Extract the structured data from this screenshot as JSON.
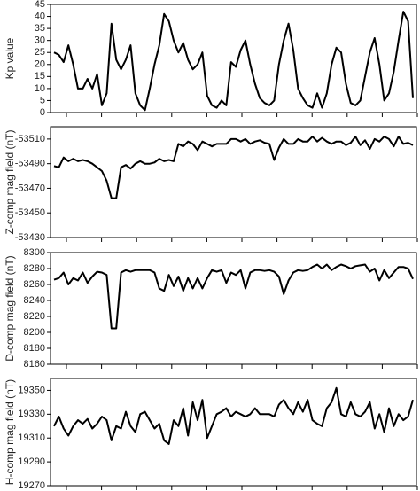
{
  "chart_data": [
    {
      "type": "line",
      "ylabel": "Kp value",
      "color": "#000000",
      "ylim": [
        0,
        45
      ],
      "yticks": [
        0,
        5,
        10,
        15,
        20,
        25,
        30,
        35,
        40,
        45
      ],
      "values": [
        25,
        24,
        21,
        28,
        20,
        10,
        10,
        14,
        10,
        16,
        3,
        8,
        37,
        22,
        18,
        22,
        28,
        8,
        3,
        1,
        10,
        20,
        28,
        41,
        38,
        30,
        25,
        29,
        22,
        18,
        20,
        25,
        7,
        3,
        2,
        5,
        3,
        21,
        19,
        26,
        30,
        20,
        12,
        6,
        4,
        3,
        5,
        20,
        30,
        37,
        26,
        10,
        6,
        3,
        2,
        8,
        2,
        8,
        20,
        27,
        25,
        12,
        4,
        3,
        5,
        15,
        25,
        31,
        20,
        5,
        8,
        17,
        30,
        42,
        38,
        6
      ]
    },
    {
      "type": "line",
      "ylabel": "Z-comp mag field (nT)",
      "color": "#000000",
      "ylim": [
        -53430,
        -53520
      ],
      "yticks": [
        -53510,
        -53490,
        -53470,
        -53450,
        -53430
      ],
      "values": [
        -53488,
        -53487,
        -53495,
        -53492,
        -53494,
        -53492,
        -53493,
        -53492,
        -53490,
        -53487,
        -53484,
        -53476,
        -53462,
        -53462,
        -53487,
        -53489,
        -53486,
        -53490,
        -53492,
        -53490,
        -53490,
        -53491,
        -53494,
        -53492,
        -53493,
        -53492,
        -53506,
        -53504,
        -53508,
        -53506,
        -53501,
        -53508,
        -53506,
        -53504,
        -53506,
        -53506,
        -53506,
        -53510,
        -53510,
        -53508,
        -53510,
        -53506,
        -53508,
        -53509,
        -53507,
        -53506,
        -53493,
        -53503,
        -53510,
        -53506,
        -53506,
        -53510,
        -53508,
        -53508,
        -53512,
        -53508,
        -53511,
        -53508,
        -53506,
        -53508,
        -53508,
        -53505,
        -53507,
        -53512,
        -53505,
        -53509,
        -53502,
        -53510,
        -53508,
        -53512,
        -53510,
        -53504,
        -53512,
        -53506,
        -53507,
        -53505
      ]
    },
    {
      "type": "line",
      "ylabel": "D-comp mag field (nT)",
      "color": "#000000",
      "ylim": [
        8160,
        8300
      ],
      "yticks": [
        8160,
        8180,
        8200,
        8220,
        8240,
        8260,
        8280,
        8300
      ],
      "values": [
        8266,
        8268,
        8275,
        8260,
        8268,
        8265,
        8275,
        8262,
        8270,
        8276,
        8275,
        8272,
        8205,
        8205,
        8275,
        8278,
        8276,
        8278,
        8278,
        8278,
        8278,
        8275,
        8255,
        8252,
        8272,
        8258,
        8270,
        8252,
        8268,
        8255,
        8268,
        8255,
        8268,
        8278,
        8276,
        8278,
        8262,
        8275,
        8272,
        8278,
        8255,
        8275,
        8278,
        8278,
        8277,
        8278,
        8276,
        8270,
        8248,
        8265,
        8275,
        8278,
        8277,
        8278,
        8282,
        8285,
        8280,
        8285,
        8278,
        8282,
        8285,
        8283,
        8280,
        8283,
        8284,
        8285,
        8276,
        8280,
        8265,
        8278,
        8268,
        8275,
        8282,
        8282,
        8280,
        8267
      ]
    },
    {
      "type": "line",
      "ylabel": "H-comp mag field (nT)",
      "color": "#000000",
      "ylim": [
        19270,
        19360
      ],
      "yticks": [
        19270,
        19290,
        19310,
        19330,
        19350
      ],
      "values": [
        19320,
        19328,
        19318,
        19312,
        19320,
        19325,
        19322,
        19326,
        19318,
        19322,
        19328,
        19325,
        19308,
        19320,
        19318,
        19332,
        19320,
        19315,
        19330,
        19332,
        19325,
        19318,
        19322,
        19308,
        19305,
        19325,
        19320,
        19335,
        19312,
        19340,
        19325,
        19342,
        19310,
        19320,
        19330,
        19332,
        19335,
        19328,
        19332,
        19330,
        19328,
        19330,
        19335,
        19330,
        19330,
        19330,
        19328,
        19338,
        19342,
        19335,
        19330,
        19340,
        19332,
        19342,
        19325,
        19322,
        19320,
        19335,
        19340,
        19352,
        19330,
        19328,
        19340,
        19330,
        19328,
        19332,
        19340,
        19318,
        19330,
        19315,
        19335,
        19320,
        19330,
        19325,
        19328,
        19342
      ]
    }
  ]
}
